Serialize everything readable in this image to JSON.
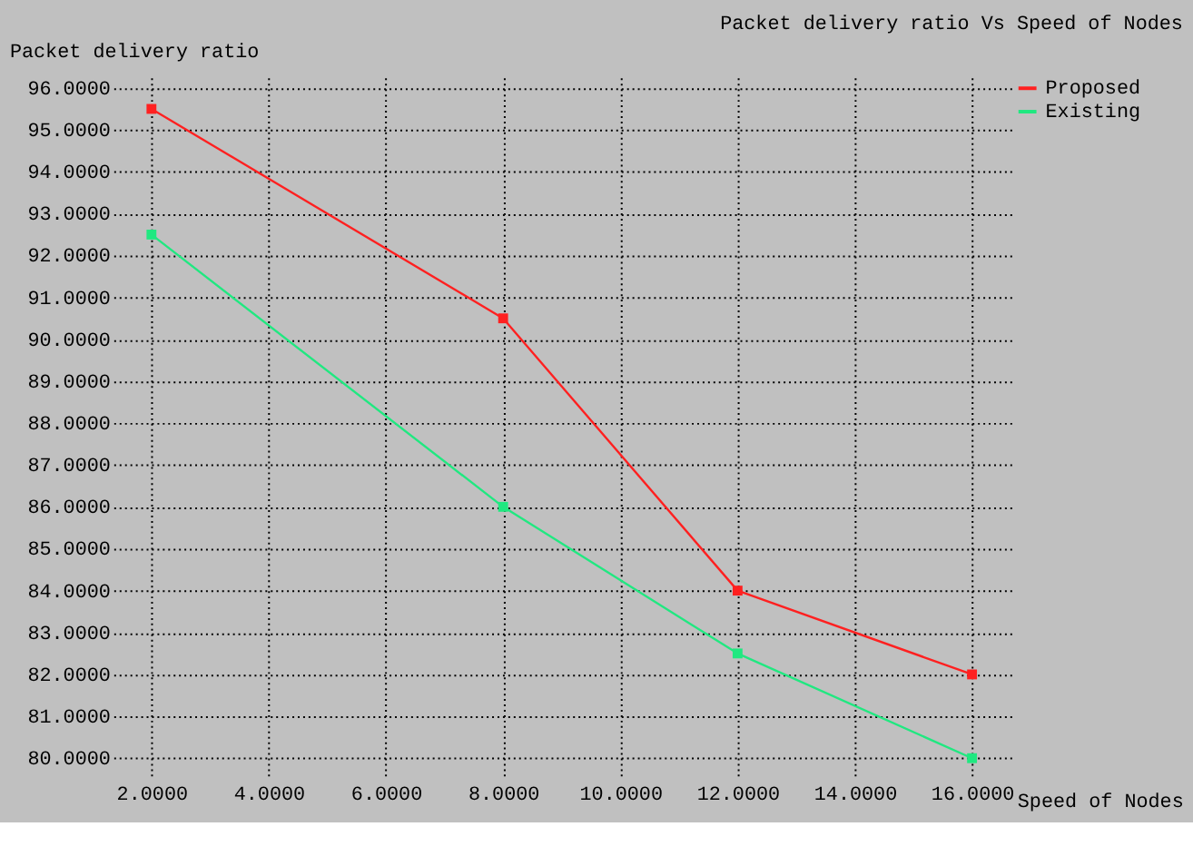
{
  "chart_data": {
    "type": "line",
    "title": "Packet delivery ratio Vs Speed of Nodes",
    "xlabel": "Speed of Nodes",
    "ylabel": "Packet delivery ratio",
    "x": [
      2,
      8,
      12,
      16
    ],
    "series": [
      {
        "name": "Proposed",
        "color": "#ff2020",
        "values": [
          95.5,
          90.5,
          84,
          82
        ]
      },
      {
        "name": "Existing",
        "color": "#20e880",
        "values": [
          92.5,
          86,
          82.5,
          80
        ]
      }
    ],
    "xlim": [
      1.35,
      16.7
    ],
    "ylim": [
      79.5,
      96.25
    ],
    "xticks": [
      {
        "value": 2,
        "label": "2.0000"
      },
      {
        "value": 4,
        "label": "4.0000"
      },
      {
        "value": 6,
        "label": "6.0000"
      },
      {
        "value": 8,
        "label": "8.0000"
      },
      {
        "value": 10,
        "label": "10.0000"
      },
      {
        "value": 12,
        "label": "12.0000"
      },
      {
        "value": 14,
        "label": "14.0000"
      },
      {
        "value": 16,
        "label": "16.0000"
      }
    ],
    "yticks": [
      {
        "value": 80,
        "label": "80.0000"
      },
      {
        "value": 81,
        "label": "81.0000"
      },
      {
        "value": 82,
        "label": "82.0000"
      },
      {
        "value": 83,
        "label": "83.0000"
      },
      {
        "value": 84,
        "label": "84.0000"
      },
      {
        "value": 85,
        "label": "85.0000"
      },
      {
        "value": 86,
        "label": "86.0000"
      },
      {
        "value": 87,
        "label": "87.0000"
      },
      {
        "value": 88,
        "label": "88.0000"
      },
      {
        "value": 89,
        "label": "89.0000"
      },
      {
        "value": 90,
        "label": "90.0000"
      },
      {
        "value": 91,
        "label": "91.0000"
      },
      {
        "value": 92,
        "label": "92.0000"
      },
      {
        "value": 93,
        "label": "93.0000"
      },
      {
        "value": 94,
        "label": "94.0000"
      },
      {
        "value": 95,
        "label": "95.0000"
      },
      {
        "value": 96,
        "label": "96.0000"
      }
    ],
    "grid": true,
    "legend": "top right",
    "marker": "square",
    "line_style": "solid"
  }
}
